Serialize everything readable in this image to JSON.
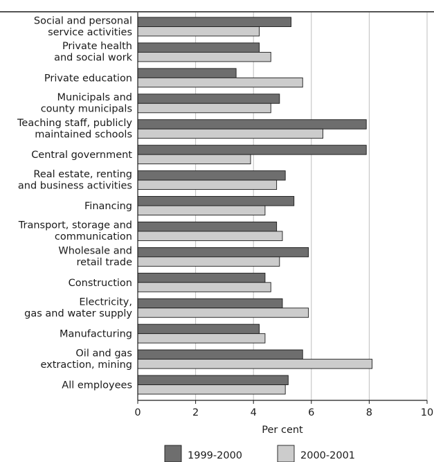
{
  "chart_data": {
    "type": "bar",
    "orientation": "horizontal",
    "categories": [
      [
        "Social and personal",
        "service activities"
      ],
      [
        "Private health",
        "and social work"
      ],
      [
        "Private education"
      ],
      [
        "Municipals and",
        "county municipals"
      ],
      [
        "Teaching staff, publicly",
        "maintained schools"
      ],
      [
        "Central government"
      ],
      [
        "Real estate, renting",
        "and business activities"
      ],
      [
        "Financing"
      ],
      [
        "Transport, storage and",
        "communication"
      ],
      [
        "Wholesale and",
        "retail trade"
      ],
      [
        "Construction"
      ],
      [
        "Electricity,",
        "gas and water supply"
      ],
      [
        "Manufacturing"
      ],
      [
        "Oil and gas",
        "extraction, mining"
      ],
      [
        "All employees"
      ]
    ],
    "series": [
      {
        "name": "1999-2000",
        "color": "#6e6e6e",
        "values": [
          5.3,
          4.2,
          3.4,
          4.9,
          7.9,
          7.9,
          5.1,
          5.4,
          4.8,
          5.9,
          4.4,
          5.0,
          4.2,
          5.7,
          5.2
        ]
      },
      {
        "name": "2000-2001",
        "color": "#cccccc",
        "values": [
          4.2,
          4.6,
          5.7,
          4.6,
          6.4,
          3.9,
          4.8,
          4.4,
          5.0,
          4.9,
          4.6,
          5.9,
          4.4,
          8.1,
          5.1
        ]
      }
    ],
    "xlabel": "Per cent",
    "xlim": [
      0,
      10
    ],
    "xticks": [
      0,
      2,
      4,
      6,
      8,
      10
    ],
    "grid": "vertical",
    "legend": "bottom"
  }
}
